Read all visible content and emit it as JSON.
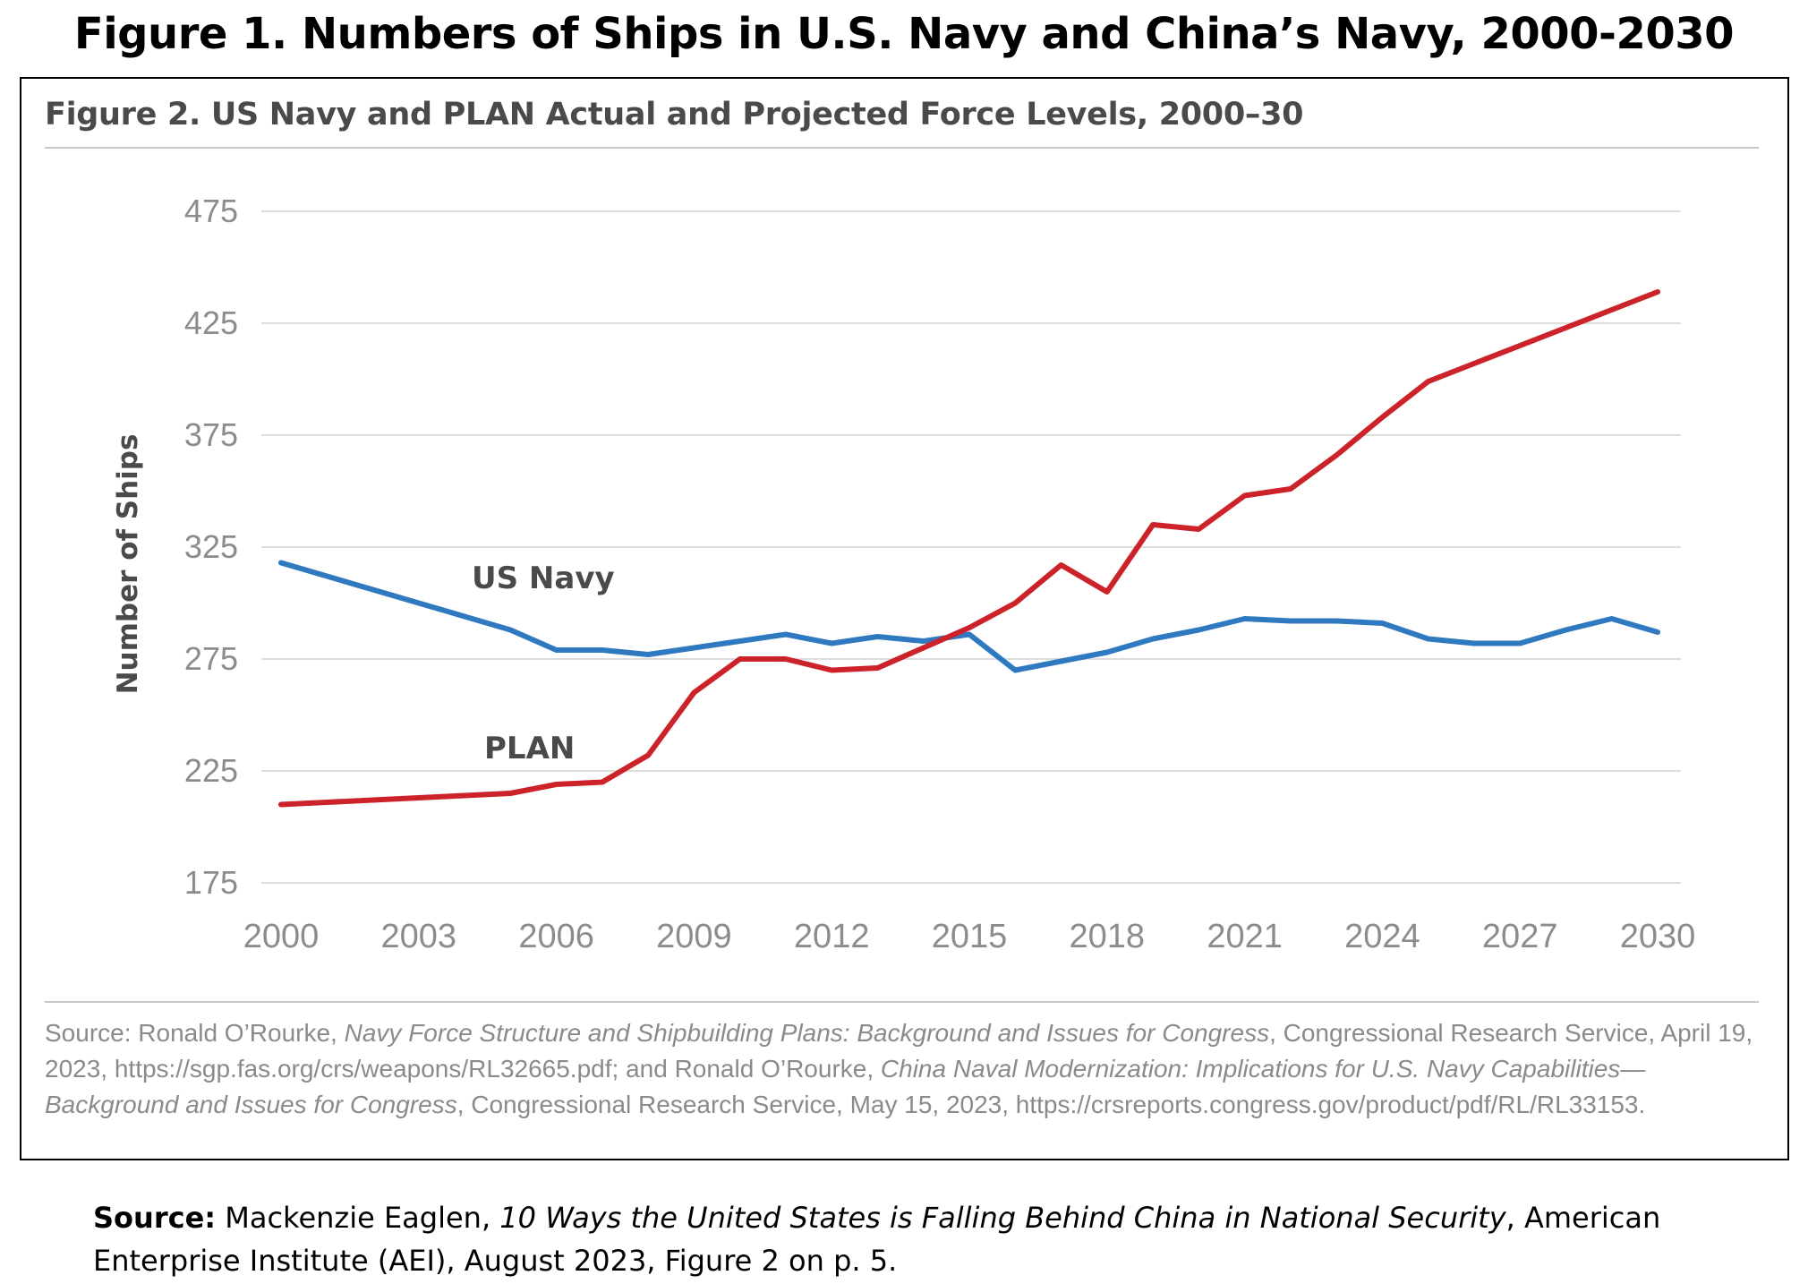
{
  "figure_title": "Figure 1. Numbers of Ships in U.S. Navy and China’s Navy, 2000-2030",
  "colors": {
    "us_navy": "#2f79c0",
    "plan": "#cc2229",
    "grid": "#dddddd",
    "tick_text": "#8c8c8c",
    "label_text": "#4a4a4a"
  },
  "chart_data": {
    "type": "line",
    "title": "Figure 2. US Navy and PLAN Actual and Projected Force Levels, 2000–30",
    "xlabel": "",
    "ylabel": "Number of Ships",
    "xlim": [
      2000,
      2030
    ],
    "ylim": [
      175,
      475
    ],
    "xticks": [
      "2000",
      "2003",
      "2006",
      "2009",
      "2012",
      "2015",
      "2018",
      "2021",
      "2024",
      "2027",
      "2030"
    ],
    "yticks": [
      "475",
      "425",
      "375",
      "325",
      "275",
      "225",
      "175"
    ],
    "grid": true,
    "legend": "direct labels on lines",
    "x": [
      2000,
      2001,
      2002,
      2003,
      2004,
      2005,
      2006,
      2007,
      2008,
      2009,
      2010,
      2011,
      2012,
      2013,
      2014,
      2015,
      2016,
      2017,
      2018,
      2019,
      2020,
      2021,
      2022,
      2023,
      2024,
      2025,
      2026,
      2027,
      2028,
      2029,
      2030
    ],
    "series": [
      {
        "name": "US Navy",
        "values": [
          318,
          312,
          306,
          300,
          294,
          288,
          279,
          279,
          277,
          280,
          283,
          286,
          282,
          285,
          283,
          286,
          270,
          274,
          278,
          284,
          288,
          293,
          292,
          292,
          291,
          284,
          282,
          282,
          288,
          293,
          287
        ]
      },
      {
        "name": "PLAN",
        "values": [
          210,
          211,
          212,
          213,
          214,
          215,
          219,
          220,
          232,
          260,
          275,
          275,
          270,
          271,
          280,
          289,
          300,
          317,
          305,
          335,
          333,
          348,
          351,
          366,
          383,
          399,
          407,
          415,
          423,
          431,
          439
        ]
      }
    ]
  },
  "source_note": {
    "label": "Source:",
    "author1": "Ronald O’Rourke,",
    "title1": "Navy Force Structure and Shipbuilding Plans: Background and Issues for Congress",
    "rest1": ", Congressional Research Service, April 19, 2023, https://sgp.fas.org/crs/weapons/RL32665.pdf; and Ronald O’Rourke,",
    "title2": "China Naval Modernization: Implications for U.S. Navy Capabilities—Background and Issues for Congress",
    "rest2": ", Congressional Research Service, May 15, 2023, https://crsreports.congress.gov/product/pdf/RL/RL33153."
  },
  "bottom_source": {
    "label": "Source:",
    "author": "Mackenzie Eaglen,",
    "title": "10 Ways the United States is Falling Behind China in National Security",
    "rest": ", American Enterprise Institute (AEI), August 2023, Figure 2 on p. 5."
  }
}
